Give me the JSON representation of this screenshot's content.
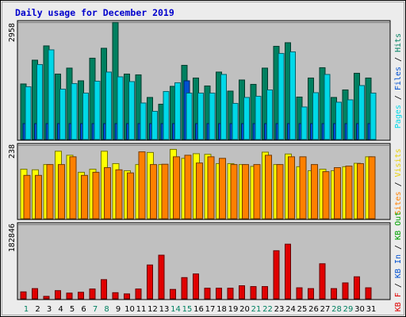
{
  "chart_data": {
    "type": "bar",
    "title": "Daily usage for December 2019",
    "days": [
      "1",
      "2",
      "3",
      "4",
      "5",
      "6",
      "7",
      "8",
      "9",
      "10",
      "11",
      "12",
      "13",
      "14",
      "15",
      "16",
      "17",
      "18",
      "19",
      "20",
      "21",
      "22",
      "23",
      "24",
      "25",
      "26",
      "27",
      "28",
      "29",
      "30",
      "31"
    ],
    "weekend_days": [
      "1",
      "7",
      "8",
      "14",
      "15",
      "21",
      "22",
      "28",
      "29"
    ],
    "panels": [
      {
        "id": "hits-files-pages",
        "ymax_label": "2958",
        "ymax": 2958,
        "axis_label_parts": [
          {
            "text": "Pages",
            "color": "#00D8E8"
          },
          {
            "text": " / ",
            "color": "#000000"
          },
          {
            "text": "Files",
            "color": "#0050D0"
          },
          {
            "text": " / ",
            "color": "#000000"
          },
          {
            "text": "Hits",
            "color": "#008060"
          }
        ],
        "series": [
          {
            "name": "Hits",
            "color": "#008060",
            "values": [
              1400,
              2000,
              2360,
              1650,
              1800,
              1480,
              2050,
              2300,
              2950,
              1650,
              1630,
              1060,
              890,
              1340,
              1870,
              1550,
              1350,
              1700,
              1220,
              1500,
              1390,
              1800,
              2350,
              2440,
              1070,
              1550,
              1810,
              1060,
              1250,
              1670,
              1550
            ]
          },
          {
            "name": "Files",
            "color": "#0050D0",
            "values": [
              400,
              400,
              400,
              400,
              400,
              400,
              400,
              400,
              400,
              400,
              400,
              400,
              400,
              400,
              1480,
              400,
              400,
              400,
              400,
              400,
              400,
              400,
              400,
              400,
              400,
              400,
              400,
              400,
              400,
              400,
              400
            ]
          },
          {
            "name": "Pages",
            "color": "#00D8E8",
            "values": [
              1330,
              1890,
              2260,
              1270,
              1410,
              1170,
              1470,
              1700,
              1580,
              1460,
              920,
              710,
              1210,
              1430,
              1170,
              1170,
              1170,
              1640,
              910,
              1060,
              1090,
              1250,
              2170,
              2210,
              820,
              1180,
              1640,
              940,
              1000,
              1360,
              1170
            ]
          }
        ]
      },
      {
        "id": "visits-sites",
        "ymax_label": "238",
        "ymax": 238,
        "axis_label_parts": [
          {
            "text": "Sites",
            "color": "#FF8000"
          },
          {
            "text": " / ",
            "color": "#000000"
          },
          {
            "text": "Visits",
            "color": "#E8D000"
          }
        ],
        "series": [
          {
            "name": "Visits",
            "color": "#FFFF00",
            "values": [
              160,
              158,
              175,
              218,
              205,
              150,
              160,
              218,
              178,
              155,
              175,
              214,
              175,
              224,
              195,
              210,
              208,
              178,
              178,
              175,
              169,
              215,
              175,
              209,
              168,
              155,
              160,
              155,
              168,
              179,
              200
            ]
          },
          {
            "name": "Sites",
            "color": "#FF8000",
            "values": [
              140,
              140,
              175,
              175,
              200,
              140,
              150,
              165,
              158,
              148,
              216,
              175,
              176,
              200,
              205,
              180,
              200,
              195,
              175,
              175,
              175,
              205,
              175,
              200,
              200,
              175,
              152,
              165,
              170,
              178,
              200
            ]
          }
        ]
      },
      {
        "id": "kbytes",
        "ymax_label": "182846",
        "ymax": 182846,
        "axis_label_parts": [
          {
            "text": "KB F",
            "color": "#E00000"
          },
          {
            "text": " / ",
            "color": "#000000"
          },
          {
            "text": "KB In",
            "color": "#0050D0"
          },
          {
            "text": " / ",
            "color": "#000000"
          },
          {
            "text": "KB Out",
            "color": "#00A000"
          }
        ],
        "series": [
          {
            "name": "KB F",
            "color": "#E00000",
            "values": [
              17000,
              25000,
              6000,
              20000,
              14000,
              16000,
              24000,
              47000,
              15000,
              12000,
              24000,
              83000,
              107000,
              23000,
              52000,
              61000,
              26000,
              26000,
              26000,
              32000,
              30000,
              30000,
              118000,
              134000,
              27000,
              25000,
              86000,
              25000,
              39000,
              54000,
              27000
            ]
          }
        ]
      }
    ]
  }
}
